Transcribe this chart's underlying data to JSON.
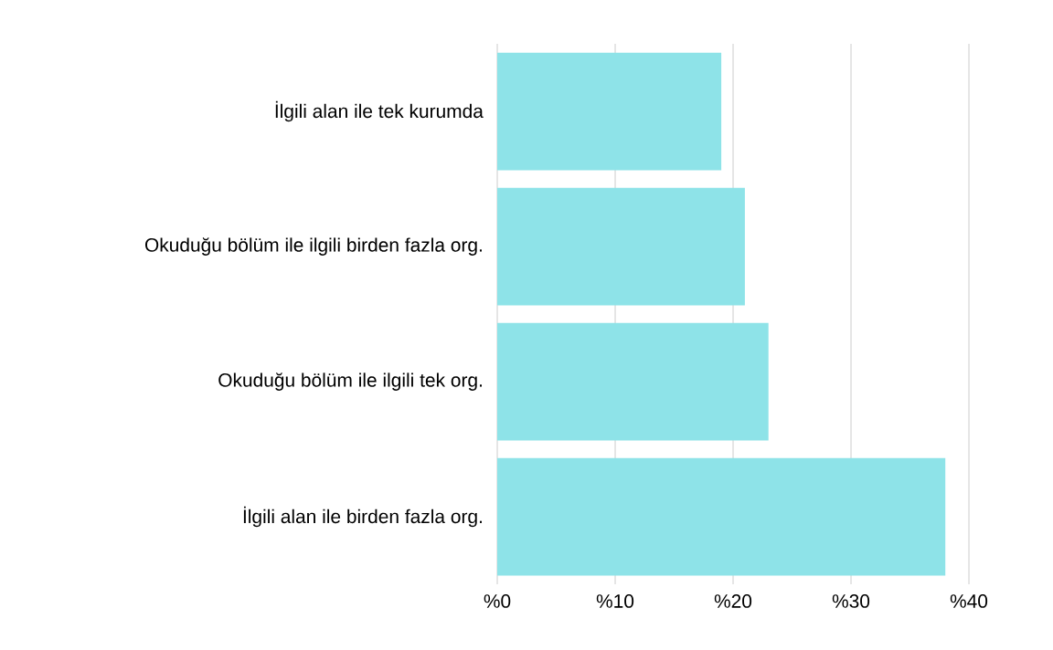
{
  "chart_data": {
    "type": "bar",
    "orientation": "horizontal",
    "categories": [
      "İlgili alan ile tek kurumda",
      "Okuduğu bölüm ile ilgili birden fazla org.",
      "Okuduğu bölüm ile ilgili tek org.",
      "İlgili alan ile birden fazla org."
    ],
    "values": [
      19,
      21,
      23,
      38
    ],
    "color": "#8ee3e8",
    "xlim": [
      0,
      40
    ],
    "xticks": [
      {
        "value": 0,
        "label": "%0"
      },
      {
        "value": 10,
        "label": "%10"
      },
      {
        "value": 20,
        "label": "%20"
      },
      {
        "value": 30,
        "label": "%30"
      },
      {
        "value": 40,
        "label": "%40"
      }
    ],
    "grid": "x"
  }
}
